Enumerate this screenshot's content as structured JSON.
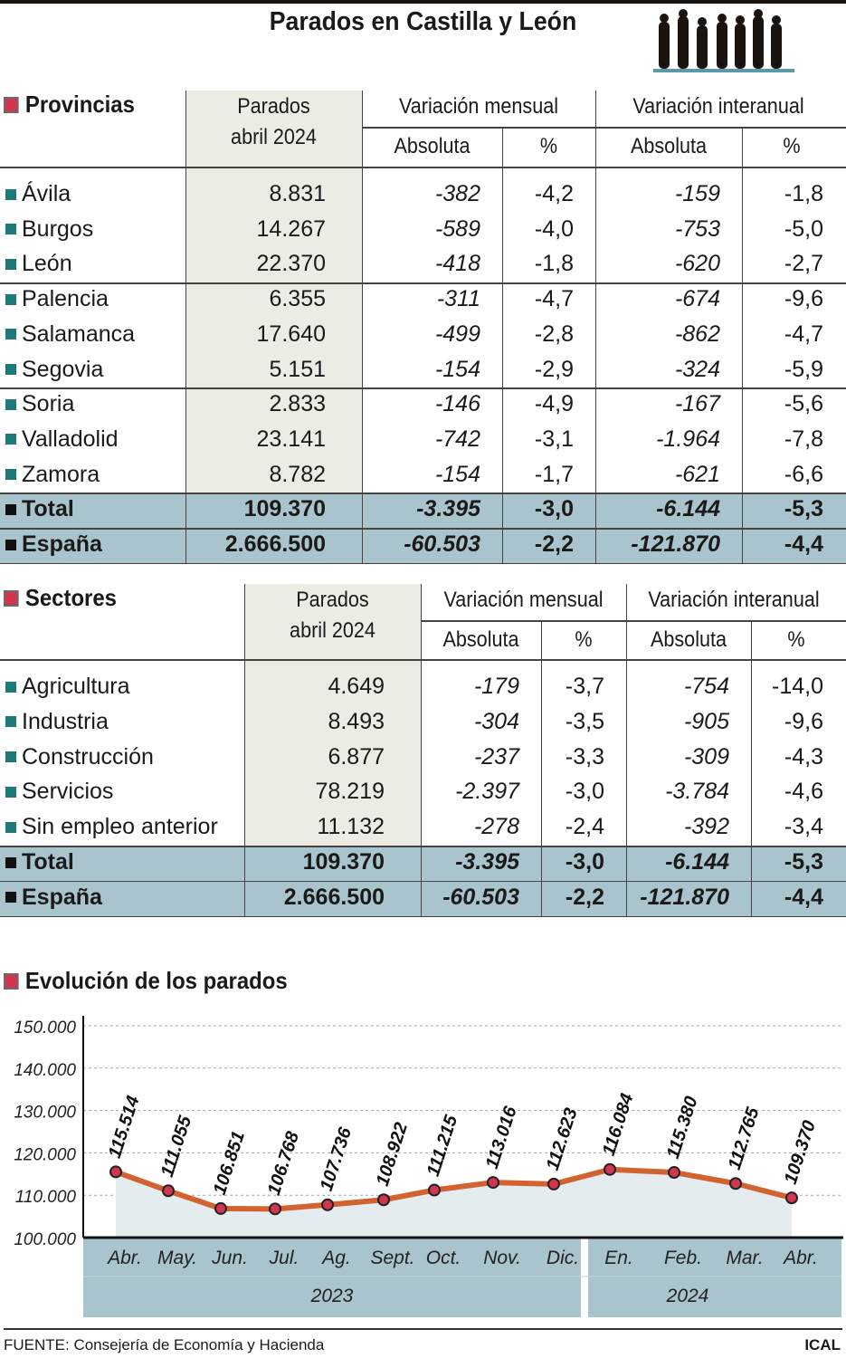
{
  "title": "Parados en Castilla y León",
  "provincias": {
    "title": "Provincias",
    "headers": {
      "parados": "Parados",
      "parados2": "abril 2024",
      "mensual": "Variación mensual",
      "interanual": "Variación interanual",
      "absoluta": "Absoluta",
      "pct": "%"
    },
    "rows": [
      {
        "name": "Ávila",
        "parados": "8.831",
        "m_abs": "-382",
        "m_pct": "-4,2",
        "i_abs": "-159",
        "i_pct": "-1,8"
      },
      {
        "name": "Burgos",
        "parados": "14.267",
        "m_abs": "-589",
        "m_pct": "-4,0",
        "i_abs": "-753",
        "i_pct": "-5,0"
      },
      {
        "name": "León",
        "parados": "22.370",
        "m_abs": "-418",
        "m_pct": "-1,8",
        "i_abs": "-620",
        "i_pct": "-2,7"
      },
      {
        "name": "Palencia",
        "parados": "6.355",
        "m_abs": "-311",
        "m_pct": "-4,7",
        "i_abs": "-674",
        "i_pct": "-9,6"
      },
      {
        "name": "Salamanca",
        "parados": "17.640",
        "m_abs": "-499",
        "m_pct": "-2,8",
        "i_abs": "-862",
        "i_pct": "-4,7"
      },
      {
        "name": "Segovia",
        "parados": "5.151",
        "m_abs": "-154",
        "m_pct": "-2,9",
        "i_abs": "-324",
        "i_pct": "-5,9"
      },
      {
        "name": "Soria",
        "parados": "2.833",
        "m_abs": "-146",
        "m_pct": "-4,9",
        "i_abs": "-167",
        "i_pct": "-5,6"
      },
      {
        "name": "Valladolid",
        "parados": "23.141",
        "m_abs": "-742",
        "m_pct": "-3,1",
        "i_abs": "-1.964",
        "i_pct": "-7,8"
      },
      {
        "name": "Zamora",
        "parados": "8.782",
        "m_abs": "-154",
        "m_pct": "-1,7",
        "i_abs": "-621",
        "i_pct": "-6,6"
      },
      {
        "name": "Total",
        "parados": "109.370",
        "m_abs": "-3.395",
        "m_pct": "-3,0",
        "i_abs": "-6.144",
        "i_pct": "-5,3",
        "total": true
      },
      {
        "name": "España",
        "parados": "2.666.500",
        "m_abs": "-60.503",
        "m_pct": "-2,2",
        "i_abs": "-121.870",
        "i_pct": "-4,4",
        "total": true
      }
    ]
  },
  "sectores": {
    "title": "Sectores",
    "headers": {
      "parados": "Parados",
      "parados2": "abril 2024",
      "mensual": "Variación mensual",
      "interanual": "Variación interanual",
      "absoluta": "Absoluta",
      "pct": "%"
    },
    "rows": [
      {
        "name": "Agricultura",
        "parados": "4.649",
        "m_abs": "-179",
        "m_pct": "-3,7",
        "i_abs": "-754",
        "i_pct": "-14,0"
      },
      {
        "name": "Industria",
        "parados": "8.493",
        "m_abs": "-304",
        "m_pct": "-3,5",
        "i_abs": "-905",
        "i_pct": "-9,6"
      },
      {
        "name": "Construcción",
        "parados": "6.877",
        "m_abs": "-237",
        "m_pct": "-3,3",
        "i_abs": "-309",
        "i_pct": "-4,3"
      },
      {
        "name": "Servicios",
        "parados": "78.219",
        "m_abs": "-2.397",
        "m_pct": "-3,0",
        "i_abs": "-3.784",
        "i_pct": "-4,6"
      },
      {
        "name": "Sin empleo anterior",
        "parados": "11.132",
        "m_abs": "-278",
        "m_pct": "-2,4",
        "i_abs": "-392",
        "i_pct": "-3,4"
      },
      {
        "name": "Total",
        "parados": "109.370",
        "m_abs": "-3.395",
        "m_pct": "-3,0",
        "i_abs": "-6.144",
        "i_pct": "-5,3",
        "total": true
      },
      {
        "name": "España",
        "parados": "2.666.500",
        "m_abs": "-60.503",
        "m_pct": "-2,2",
        "i_abs": "-121.870",
        "i_pct": "-4,4",
        "total": true
      }
    ]
  },
  "chart_data": {
    "type": "line",
    "title": "Evolución de los parados",
    "categories": [
      "Abr.",
      "May.",
      "Jun.",
      "Jul.",
      "Ag.",
      "Sept.",
      "Oct.",
      "Nov.",
      "Dic.",
      "En.",
      "Feb.",
      "Mar.",
      "Abr."
    ],
    "years": [
      {
        "label": "2023",
        "count": 9
      },
      {
        "label": "2024",
        "count": 4
      }
    ],
    "values": [
      115514,
      111055,
      106851,
      106768,
      107736,
      108922,
      111215,
      113016,
      112623,
      116084,
      115380,
      112765,
      109370
    ],
    "labels": [
      "115.514",
      "111.055",
      "106.851",
      "106.768",
      "107.736",
      "108.922",
      "111.215",
      "113.016",
      "112.623",
      "116.084",
      "115.380",
      "112.765",
      "109.370"
    ],
    "ylim": [
      100000,
      150000
    ],
    "yticks": [
      "100.000",
      "110.000",
      "120.000",
      "130.000",
      "140.000",
      "150.000"
    ],
    "grid": true,
    "colors": {
      "line": "#d2622f",
      "marker": "#d0364e",
      "area": "#e4ecf0",
      "band": "#a9c4cc"
    }
  },
  "footer": {
    "source": "FUENTE: Consejería de Economía y Hacienda",
    "brand": "ICAL"
  }
}
